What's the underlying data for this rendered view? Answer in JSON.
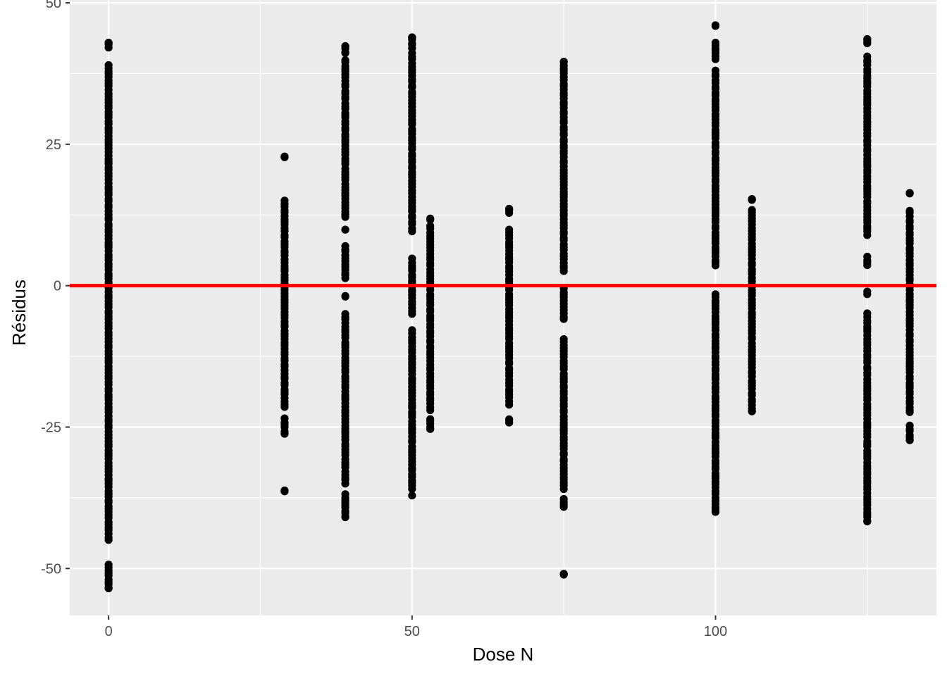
{
  "chart_data": {
    "type": "scatter",
    "title": "",
    "xlabel": "Dose N",
    "ylabel": "Résidus",
    "xlim": [
      -6.4,
      136.4
    ],
    "ylim": [
      -58.3,
      50.5
    ],
    "x_ticks": [
      0,
      50,
      100
    ],
    "x_tick_labels": [
      "0",
      "50",
      "100"
    ],
    "y_ticks": [
      -50,
      -25,
      0,
      25,
      50
    ],
    "y_tick_labels": [
      "-50",
      "-25",
      "0",
      "25",
      "50"
    ],
    "grid": true,
    "legend": "none",
    "background": "#ebebeb",
    "point_color": "#000000",
    "reference_line": {
      "y": 0,
      "color": "#ff0000"
    },
    "groups": [
      {
        "x": 0,
        "range": [
          -53.4,
          42.9
        ],
        "dense": [
          [
            -45,
            39
          ],
          [
            -53.4,
            -49.2
          ],
          [
            42.2,
            42.9
          ]
        ]
      },
      {
        "x": 29,
        "range": [
          -36.3,
          22.7
        ],
        "dense": [
          [
            -21.5,
            15
          ],
          [
            -26.2,
            -23.5
          ],
          [
            -36.3,
            -36.3
          ],
          [
            22.7,
            22.7
          ]
        ]
      },
      {
        "x": 39,
        "range": [
          -40.8,
          42.3
        ],
        "dense": [
          [
            -35,
            -5
          ],
          [
            12,
            40
          ],
          [
            -40.8,
            -36.9
          ],
          [
            1.3,
            7
          ],
          [
            41,
            42.3
          ],
          [
            -1.8,
            -1.8
          ],
          [
            10,
            10
          ]
        ]
      },
      {
        "x": 50,
        "range": [
          -37.1,
          43.9
        ],
        "dense": [
          [
            -36,
            -8
          ],
          [
            -5,
            4.7
          ],
          [
            9.7,
            41
          ],
          [
            42,
            43.9
          ]
        ]
      },
      {
        "x": 53,
        "range": [
          -25.3,
          11.8
        ],
        "dense": [
          [
            -22,
            10.5
          ],
          [
            -25.3,
            -23.6
          ],
          [
            11.8,
            11.8
          ]
        ]
      },
      {
        "x": 66,
        "range": [
          -24.2,
          13.6
        ],
        "dense": [
          [
            -21,
            10
          ],
          [
            -24.2,
            -23.5
          ],
          [
            12.8,
            13.6
          ]
        ]
      },
      {
        "x": 75,
        "range": [
          -51.0,
          39.6
        ],
        "dense": [
          [
            -36,
            -9.5
          ],
          [
            2.5,
            39.6
          ],
          [
            -6,
            -0.5
          ],
          [
            -39,
            -37.7
          ],
          [
            -51,
            -51
          ]
        ]
      },
      {
        "x": 100,
        "range": [
          -40.0,
          45.9
        ],
        "dense": [
          [
            -39,
            -1.5
          ],
          [
            3.5,
            38
          ],
          [
            40,
            43
          ],
          [
            -40,
            -39.5
          ],
          [
            45.9,
            45.9
          ]
        ]
      },
      {
        "x": 106,
        "range": [
          -22.2,
          15.2
        ],
        "dense": [
          [
            -22.2,
            13.5
          ],
          [
            15.2,
            15.2
          ]
        ]
      },
      {
        "x": 125,
        "range": [
          -41.6,
          43.6
        ],
        "dense": [
          [
            -41.6,
            -5
          ],
          [
            9,
            40.5
          ],
          [
            3.5,
            5
          ],
          [
            -1.6,
            -1.1
          ],
          [
            42.9,
            43.6
          ]
        ]
      },
      {
        "x": 132,
        "range": [
          -27.3,
          16.3
        ],
        "dense": [
          [
            -22.5,
            13.3
          ],
          [
            -27.3,
            -24.8
          ],
          [
            16.3,
            16.3
          ]
        ]
      }
    ]
  }
}
